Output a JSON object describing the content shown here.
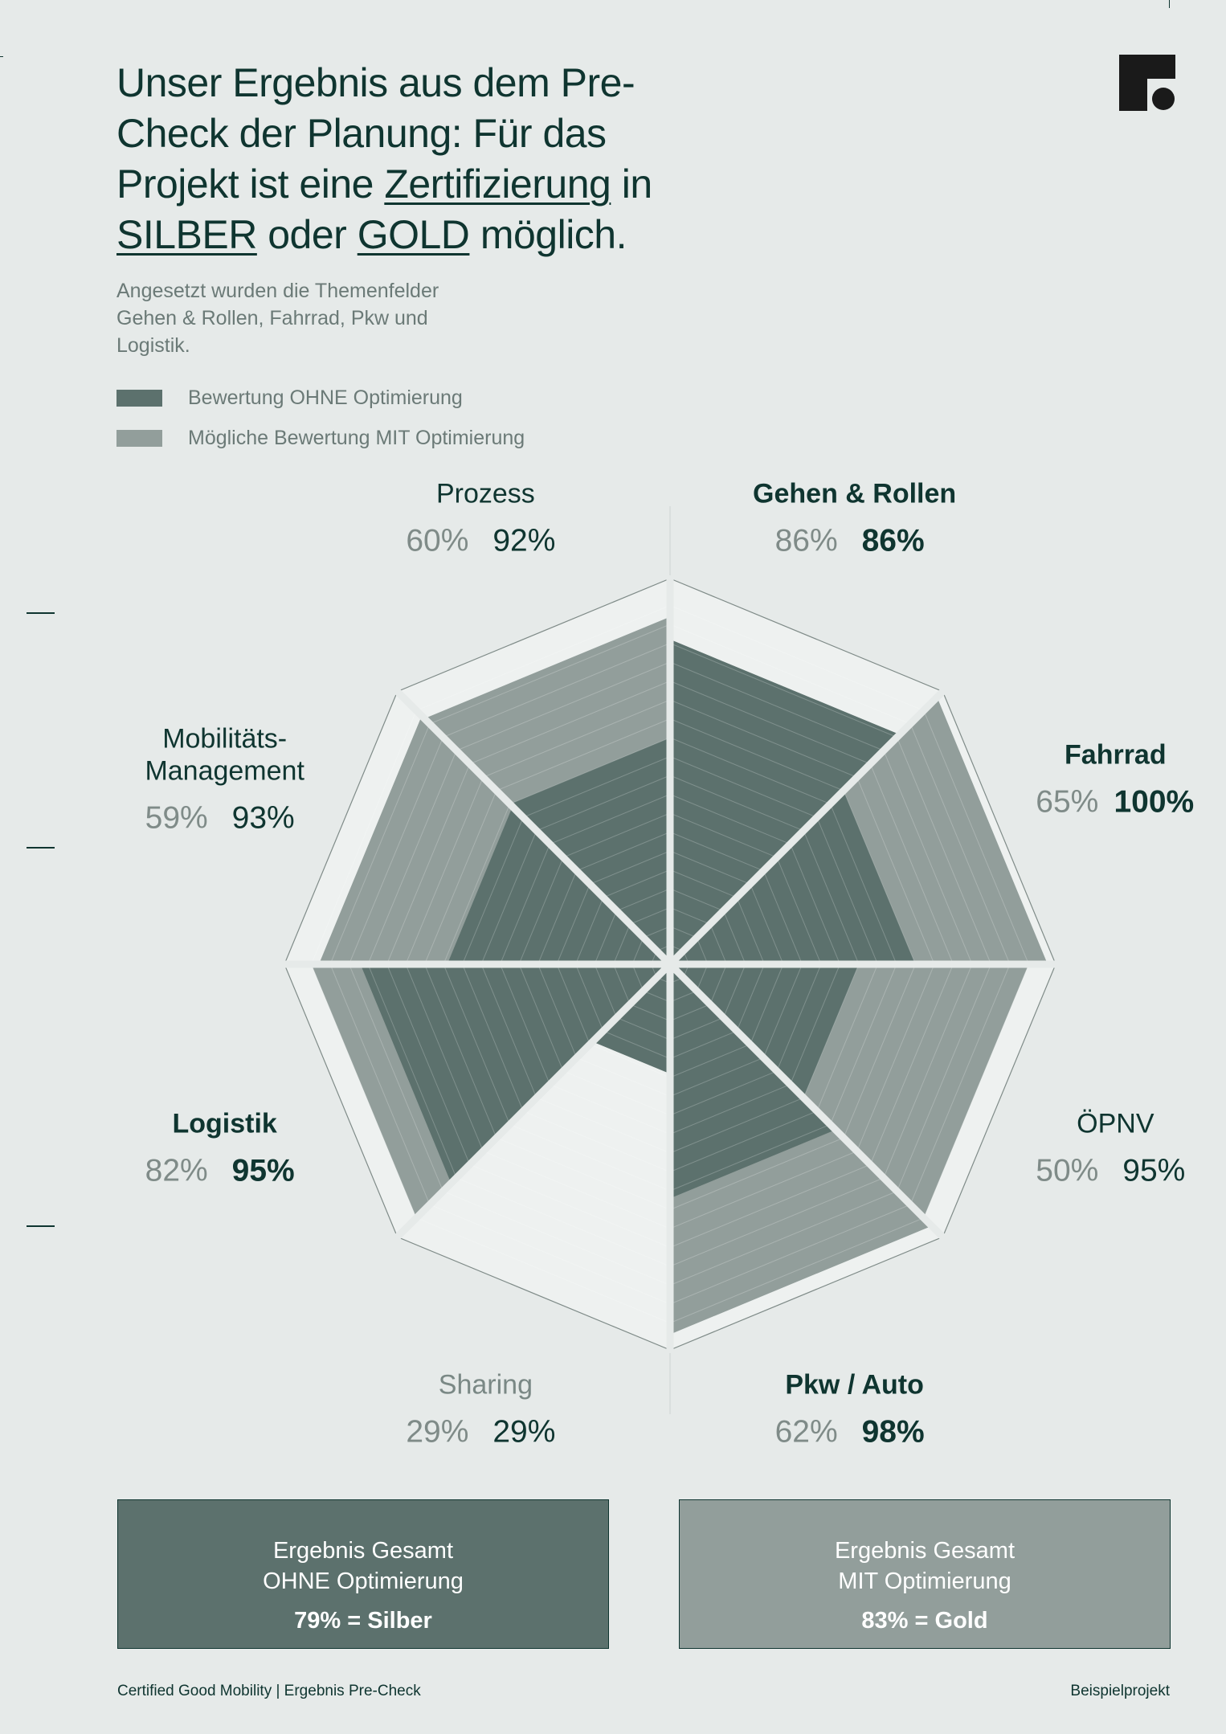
{
  "headline": {
    "part1": "Unser Ergebnis aus dem Pre-Check der Planung: Für das Projekt ist eine ",
    "link1": "Zertifizierung",
    "part2": " in ",
    "link2": "SILBER",
    "part3": " oder ",
    "link3": "GOLD",
    "part4": " möglich."
  },
  "subtext": "Angesetzt wurden die Themenfelder Gehen & Rollen, Fahrrad, Pkw und Logistik.",
  "legend": [
    {
      "label": "Bewertung OHNE Optimierung",
      "color": "#5c716d"
    },
    {
      "label": "Mögliche Bewertung MIT Optimierung",
      "color": "#929e9b"
    }
  ],
  "chart_data": {
    "type": "radar",
    "categories": [
      "Gehen & Rollen",
      "Fahrrad",
      "ÖPNV",
      "Pkw / Auto",
      "Sharing",
      "Logistik",
      "Mobilitäts-Management",
      "Prozess"
    ],
    "series": [
      {
        "name": "Bewertung OHNE Optimierung",
        "values": [
          86,
          65,
          50,
          62,
          29,
          82,
          59,
          60
        ],
        "color": "#5c716d"
      },
      {
        "name": "Mögliche Bewertung MIT Optimierung",
        "values": [
          86,
          100,
          95,
          98,
          29,
          95,
          93,
          92
        ],
        "color": "#929e9b"
      }
    ],
    "value_labels": {
      "without": [
        "86%",
        "65%",
        "50%",
        "62%",
        "29%",
        "82%",
        "59%",
        "60%"
      ],
      "with": [
        "86%",
        "100%",
        "95%",
        "98%",
        "29%",
        "95%",
        "93%",
        "92%"
      ]
    },
    "label_lines": [
      [
        "Gehen & Rollen"
      ],
      [
        "Fahrrad"
      ],
      [
        "ÖPNV"
      ],
      [
        "Pkw / Auto"
      ],
      [
        "Sharing"
      ],
      [
        "Logistik"
      ],
      [
        "Mobilitäts-",
        "Management"
      ],
      [
        "Prozess"
      ]
    ],
    "highlighted": [
      true,
      true,
      false,
      true,
      false,
      true,
      false,
      false
    ],
    "max": 100,
    "colors": {
      "label_dark": "#0f3530",
      "label_muted": "#7a8885",
      "value_muted": "#7f8b88",
      "sharing_fill": "#eef1f0"
    }
  },
  "result_boxes": [
    {
      "line1": "Ergebnis Gesamt",
      "line2": "OHNE Optimierung",
      "result": "79% = Silber",
      "color": "#5c716d"
    },
    {
      "line1": "Ergebnis Gesamt",
      "line2": "MIT Optimierung",
      "result": "83% = Gold",
      "color": "#929e9b"
    }
  ],
  "footer": {
    "left": "Certified Good Mobility | Ergebnis Pre-Check",
    "right": "Beispielprojekt"
  },
  "logo_icon": "brand-logo-icon"
}
